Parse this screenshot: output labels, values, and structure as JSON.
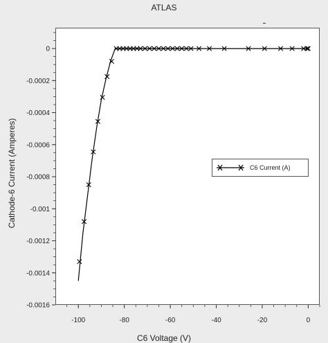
{
  "window": {
    "title": "ATLAS"
  },
  "chart_data": {
    "type": "line",
    "title": "ATLAS",
    "xlabel": "C6 Voltage (V)",
    "ylabel": "Cathode-6 Current (Amperes)",
    "xlim": [
      -110,
      5
    ],
    "ylim": [
      -0.0016,
      0.00013
    ],
    "x_ticks": [
      -100,
      -80,
      -60,
      -40,
      -20,
      0
    ],
    "x_tick_labels": [
      "-100",
      "-80",
      "-60",
      "-40",
      "-20",
      "0"
    ],
    "y_ticks": [
      0,
      -0.0002,
      -0.0004,
      -0.0006,
      -0.0008,
      -0.001,
      -0.0012,
      -0.0014,
      -0.0016
    ],
    "y_tick_labels": [
      "0",
      "-0.0002",
      "-0.0004",
      "-0.0006",
      "-0.0008",
      "-0.001",
      "-0.0012",
      "-0.0014",
      "-0.0016"
    ],
    "grid": false,
    "legend": {
      "position": "right-middle"
    },
    "series": [
      {
        "name": "C6 Current (A)",
        "color": "#000000",
        "marker": "x",
        "line_x": [
          -100,
          -98,
          -96,
          -94,
          -92,
          -90,
          -88,
          -86,
          -84,
          -82,
          -80,
          -70,
          -60,
          -50,
          -40,
          -30,
          -20,
          -10,
          0
        ],
        "line_y": [
          -0.00145,
          -0.00115,
          -0.00092,
          -0.00069,
          -0.00049,
          -0.00032,
          -0.00019,
          -8e-05,
          0,
          0,
          0,
          0,
          0,
          0,
          0,
          0,
          0,
          0,
          0
        ],
        "marker_x": [
          -99.5,
          -97.5,
          -95.5,
          -93.5,
          -91.5,
          -89.5,
          -87.5,
          -85.5,
          -83.5,
          -82.0,
          -80.5,
          -79.0,
          -77.5,
          -76.0,
          -74.5,
          -73.0,
          -71.0,
          -69.0,
          -67.0,
          -65.0,
          -63.0,
          -61.0,
          -59.0,
          -57.0,
          -55.0,
          -53.0,
          -51.0,
          -47.5,
          -43.0,
          -36.5,
          -26.0,
          -19.0,
          -12.0,
          -7.0,
          -2.0,
          -0.5,
          0
        ],
        "marker_y": [
          -0.00133,
          -0.00108,
          -0.00085,
          -0.000645,
          -0.000455,
          -0.000305,
          -0.000175,
          -8e-05,
          0,
          0,
          0,
          0,
          0,
          0,
          0,
          0,
          0,
          0,
          0,
          0,
          0,
          0,
          0,
          0,
          0,
          0,
          0,
          0,
          0,
          0,
          0,
          0,
          0,
          0,
          0,
          0,
          0
        ]
      }
    ]
  }
}
